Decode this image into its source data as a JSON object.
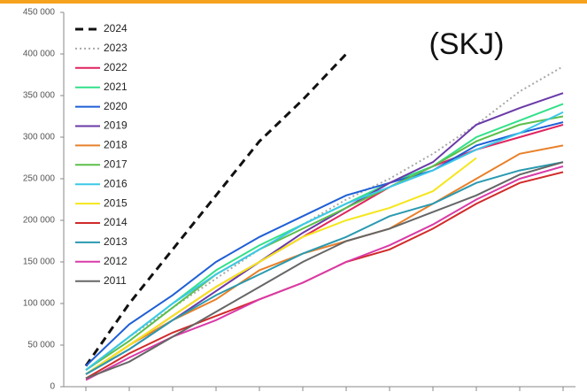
{
  "chart_data": {
    "type": "line",
    "annotation": "(SKJ)",
    "categories": [
      null,
      null,
      null,
      null,
      null,
      null,
      null,
      null,
      null,
      null,
      null,
      null
    ],
    "ylim": [
      0,
      450000
    ],
    "yticks": [
      {
        "value": 0,
        "label": "0"
      },
      {
        "value": 50000,
        "label": "50 000"
      },
      {
        "value": 100000,
        "label": "100 000"
      },
      {
        "value": 150000,
        "label": "150 000"
      },
      {
        "value": 200000,
        "label": "200 000"
      },
      {
        "value": 250000,
        "label": "250 000"
      },
      {
        "value": 300000,
        "label": "300 000"
      },
      {
        "value": 350000,
        "label": "350 000"
      },
      {
        "value": 400000,
        "label": "400 000"
      },
      {
        "value": 450000,
        "label": "450 000"
      }
    ],
    "grid": false,
    "legend": "upper left",
    "series": [
      {
        "name": "2024",
        "color": "#111111",
        "dash": "dashed",
        "values": [
          25000,
          100000,
          165000,
          230000,
          295000,
          345000,
          400000,
          null,
          null,
          null,
          null,
          null
        ]
      },
      {
        "name": "2023",
        "color": "#a8a8a8",
        "dash": "dotted",
        "values": [
          20000,
          60000,
          95000,
          130000,
          165000,
          195000,
          225000,
          250000,
          280000,
          315000,
          355000,
          385000
        ]
      },
      {
        "name": "2022",
        "color": "#e0245e",
        "dash": "solid",
        "values": [
          15000,
          50000,
          85000,
          120000,
          150000,
          180000,
          210000,
          240000,
          265000,
          285000,
          300000,
          315000
        ]
      },
      {
        "name": "2021",
        "color": "#33e08a",
        "dash": "solid",
        "values": [
          20000,
          60000,
          100000,
          140000,
          170000,
          195000,
          220000,
          245000,
          265000,
          300000,
          320000,
          340000
        ]
      },
      {
        "name": "2020",
        "color": "#1f5fd6",
        "dash": "solid",
        "values": [
          25000,
          75000,
          110000,
          150000,
          180000,
          205000,
          230000,
          245000,
          260000,
          290000,
          305000,
          318000
        ]
      },
      {
        "name": "2019",
        "color": "#6a3aa8",
        "dash": "solid",
        "values": [
          15000,
          45000,
          80000,
          115000,
          150000,
          185000,
          215000,
          245000,
          270000,
          315000,
          335000,
          353000
        ]
      },
      {
        "name": "2018",
        "color": "#e8802a",
        "dash": "solid",
        "values": [
          15000,
          50000,
          80000,
          105000,
          140000,
          160000,
          175000,
          190000,
          220000,
          250000,
          280000,
          290000
        ]
      },
      {
        "name": "2017",
        "color": "#5cbf4a",
        "dash": "solid",
        "values": [
          20000,
          55000,
          95000,
          135000,
          165000,
          190000,
          215000,
          240000,
          265000,
          295000,
          315000,
          325000
        ]
      },
      {
        "name": "2016",
        "color": "#3cc8e8",
        "dash": "solid",
        "values": [
          20000,
          60000,
          100000,
          135000,
          165000,
          195000,
          220000,
          240000,
          260000,
          285000,
          305000,
          330000
        ]
      },
      {
        "name": "2015",
        "color": "#f5e61c",
        "dash": "solid",
        "values": [
          15000,
          50000,
          85000,
          120000,
          150000,
          180000,
          200000,
          215000,
          235000,
          275000,
          null,
          null
        ]
      },
      {
        "name": "2014",
        "color": "#d12a2a",
        "dash": "solid",
        "values": [
          10000,
          40000,
          65000,
          85000,
          105000,
          125000,
          150000,
          165000,
          190000,
          220000,
          245000,
          258000
        ]
      },
      {
        "name": "2013",
        "color": "#2a9ab0",
        "dash": "solid",
        "values": [
          15000,
          45000,
          80000,
          110000,
          135000,
          160000,
          180000,
          205000,
          220000,
          245000,
          260000,
          270000
        ]
      },
      {
        "name": "2012",
        "color": "#d93aa8",
        "dash": "solid",
        "values": [
          8000,
          35000,
          60000,
          80000,
          105000,
          125000,
          150000,
          170000,
          195000,
          225000,
          250000,
          265000
        ]
      },
      {
        "name": "2011",
        "color": "#666666",
        "dash": "solid",
        "values": [
          10000,
          30000,
          60000,
          90000,
          120000,
          150000,
          175000,
          190000,
          210000,
          230000,
          255000,
          270000
        ]
      }
    ]
  }
}
